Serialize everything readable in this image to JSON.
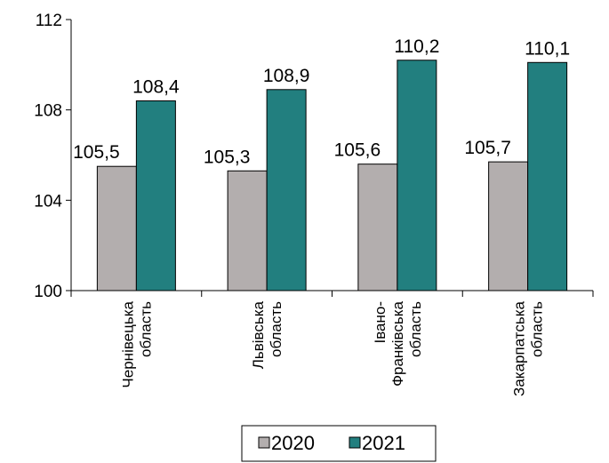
{
  "chart_data": {
    "type": "bar",
    "title": "",
    "xlabel": "",
    "ylabel": "",
    "categories": [
      [
        "Чернівецька",
        "область"
      ],
      [
        "Львівська",
        "область"
      ],
      [
        "Івано-",
        "Франківська",
        "область"
      ],
      [
        "Закарпатська",
        "область"
      ]
    ],
    "series": [
      {
        "name": "2020",
        "color": "#b3aeae",
        "values": [
          105.5,
          105.3,
          105.6,
          105.7
        ],
        "labels": [
          "105,5",
          "105,3",
          "105,6",
          "105,7"
        ]
      },
      {
        "name": "2021",
        "color": "#227f7f",
        "values": [
          108.4,
          108.9,
          110.2,
          110.1
        ],
        "labels": [
          "108,4",
          "108,9",
          "110,2",
          "110,1"
        ]
      }
    ],
    "ylim": [
      100,
      112
    ],
    "yticks": [
      100,
      104,
      108,
      112
    ],
    "grid": false,
    "legend_position": "bottom"
  }
}
